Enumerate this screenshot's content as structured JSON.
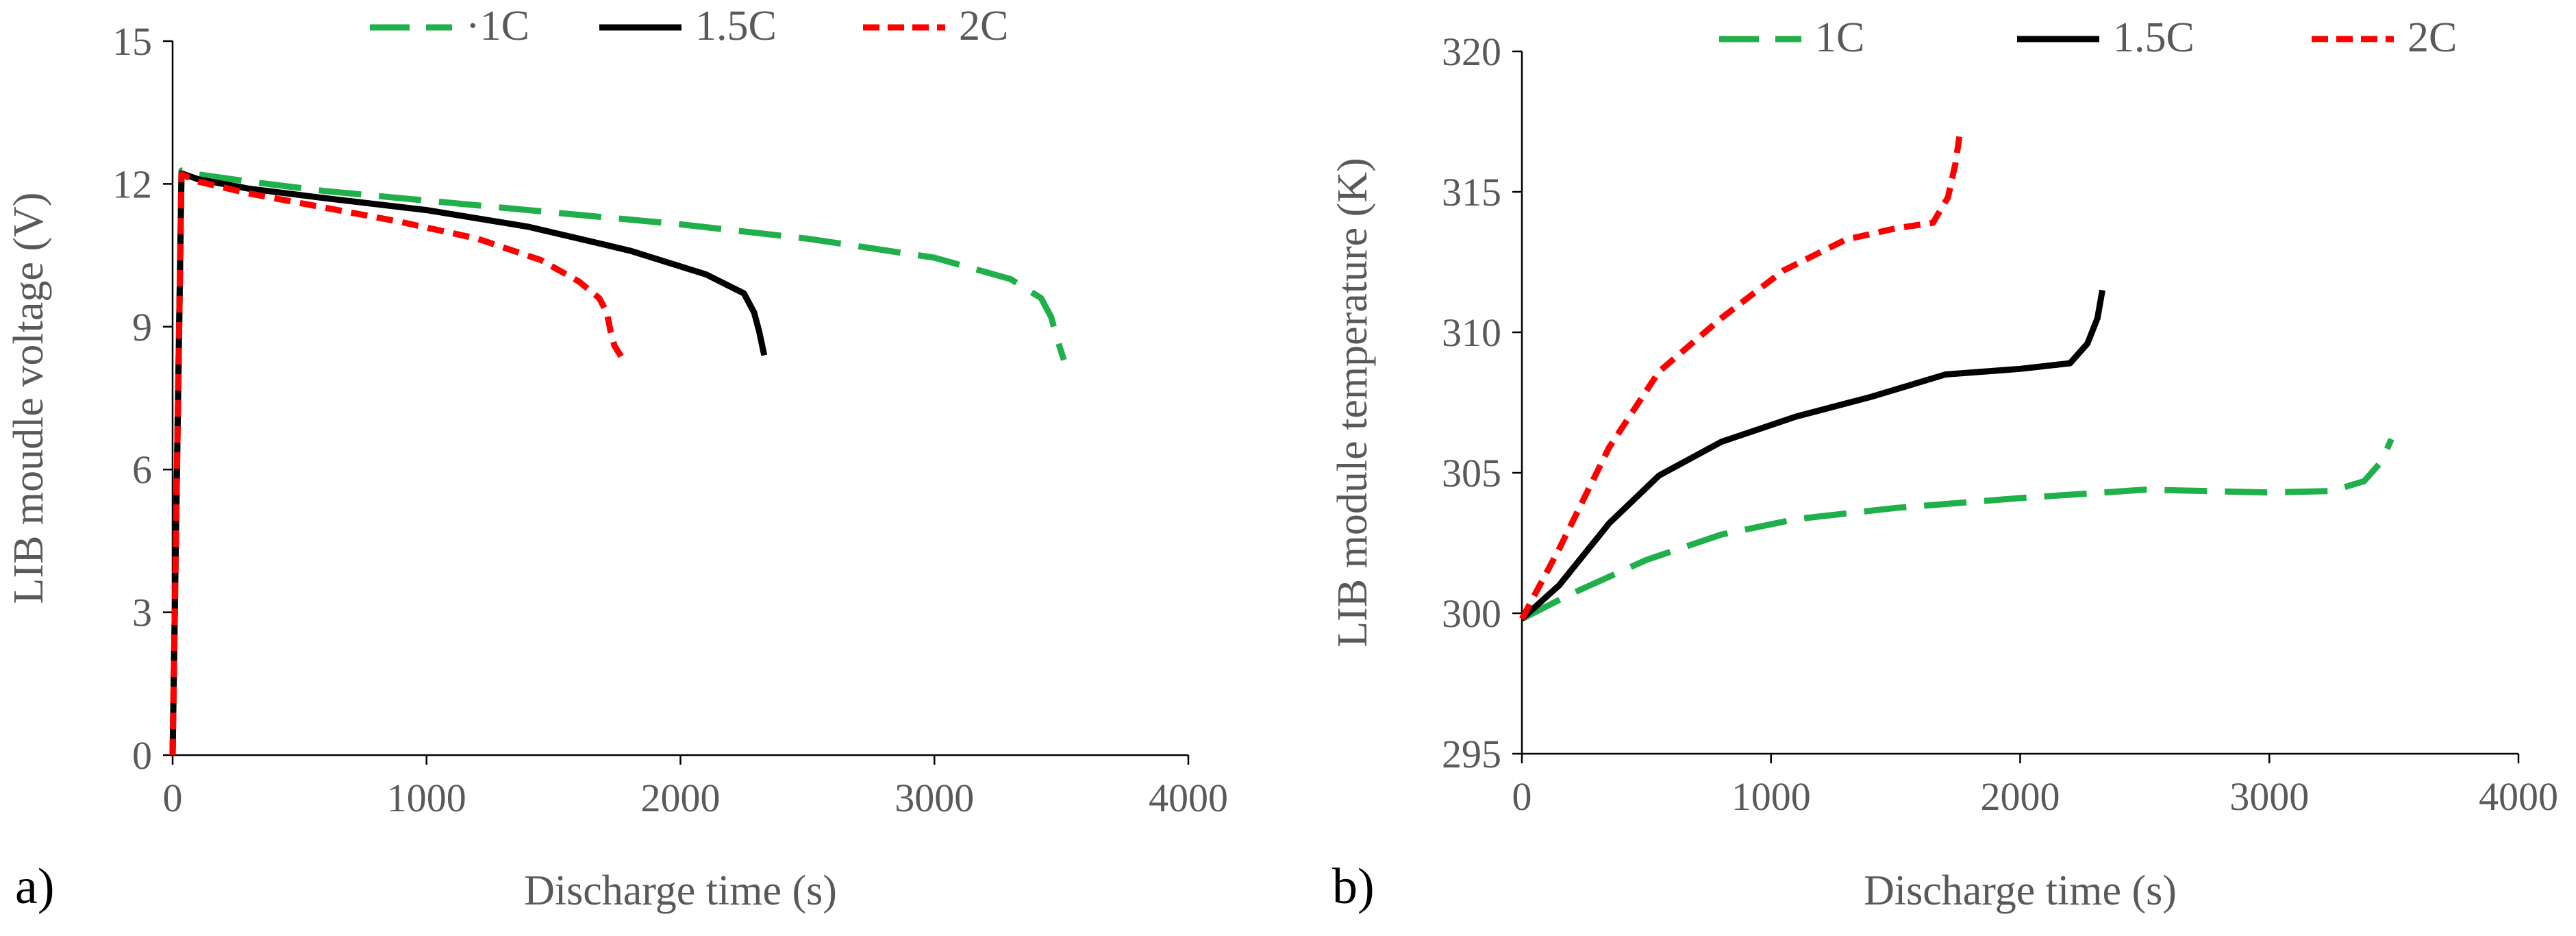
{
  "chart_data": [
    {
      "type": "line",
      "panel_label": "a)",
      "title": "",
      "xlabel": "Discharge time (s)",
      "ylabel": "LIB moudle voltage (V)",
      "xlim": [
        0,
        4000
      ],
      "ylim": [
        0,
        15
      ],
      "xticks": [
        0,
        1000,
        2000,
        3000,
        4000
      ],
      "yticks": [
        0,
        3,
        6,
        9,
        12,
        15
      ],
      "grid": false,
      "legend_position": "top",
      "series": [
        {
          "name": "1C",
          "legend_label": "·1C",
          "color": "#1fb04b",
          "style": "long-dash",
          "points": [
            [
              0,
              0
            ],
            [
              35,
              12.28
            ],
            [
              100,
              12.2
            ],
            [
              300,
              12.05
            ],
            [
              600,
              11.85
            ],
            [
              1000,
              11.65
            ],
            [
              1500,
              11.4
            ],
            [
              2000,
              11.15
            ],
            [
              2500,
              10.85
            ],
            [
              3000,
              10.45
            ],
            [
              3300,
              10.0
            ],
            [
              3420,
              9.6
            ],
            [
              3460,
              9.2
            ],
            [
              3480,
              8.8
            ],
            [
              3510,
              8.3
            ]
          ]
        },
        {
          "name": "1.5C",
          "legend_label": "1.5C",
          "color": "#000000",
          "style": "solid",
          "points": [
            [
              0,
              0
            ],
            [
              35,
              12.22
            ],
            [
              100,
              12.1
            ],
            [
              300,
              11.9
            ],
            [
              600,
              11.7
            ],
            [
              1000,
              11.45
            ],
            [
              1400,
              11.1
            ],
            [
              1800,
              10.6
            ],
            [
              2100,
              10.1
            ],
            [
              2250,
              9.7
            ],
            [
              2290,
              9.3
            ],
            [
              2310,
              8.9
            ],
            [
              2330,
              8.4
            ]
          ]
        },
        {
          "name": "2C",
          "legend_label": "2C",
          "color": "#ff0000",
          "style": "short-dash",
          "points": [
            [
              0,
              0
            ],
            [
              35,
              12.2
            ],
            [
              100,
              12.05
            ],
            [
              300,
              11.8
            ],
            [
              600,
              11.5
            ],
            [
              900,
              11.2
            ],
            [
              1200,
              10.85
            ],
            [
              1450,
              10.4
            ],
            [
              1600,
              9.95
            ],
            [
              1680,
              9.6
            ],
            [
              1710,
              9.3
            ],
            [
              1725,
              8.9
            ],
            [
              1740,
              8.6
            ],
            [
              1775,
              8.3
            ]
          ]
        }
      ]
    },
    {
      "type": "line",
      "panel_label": "b)",
      "title": "",
      "xlabel": "Discharge time (s)",
      "ylabel": "LIB module temperature (K)",
      "xlim": [
        0,
        4000
      ],
      "ylim": [
        295,
        320
      ],
      "xticks": [
        0,
        1000,
        2000,
        3000,
        4000
      ],
      "yticks": [
        295,
        300,
        305,
        310,
        315,
        320
      ],
      "grid": false,
      "legend_position": "top",
      "series": [
        {
          "name": "1C",
          "legend_label": "1C",
          "color": "#1fb04b",
          "style": "long-dash",
          "points": [
            [
              0,
              299.8
            ],
            [
              200,
              300.7
            ],
            [
              500,
              301.9
            ],
            [
              800,
              302.8
            ],
            [
              1100,
              303.35
            ],
            [
              1500,
              303.75
            ],
            [
              2000,
              304.1
            ],
            [
              2500,
              304.4
            ],
            [
              3000,
              304.3
            ],
            [
              3250,
              304.35
            ],
            [
              3380,
              304.7
            ],
            [
              3450,
              305.4
            ],
            [
              3490,
              306.2
            ]
          ]
        },
        {
          "name": "1.5C",
          "legend_label": "1.5C",
          "color": "#000000",
          "style": "solid",
          "points": [
            [
              0,
              299.8
            ],
            [
              150,
              301.0
            ],
            [
              350,
              303.2
            ],
            [
              550,
              304.9
            ],
            [
              800,
              306.1
            ],
            [
              1100,
              307.0
            ],
            [
              1400,
              307.7
            ],
            [
              1700,
              308.5
            ],
            [
              2000,
              308.7
            ],
            [
              2200,
              308.9
            ],
            [
              2270,
              309.6
            ],
            [
              2310,
              310.5
            ],
            [
              2330,
              311.5
            ]
          ]
        },
        {
          "name": "2C",
          "legend_label": "2C",
          "color": "#ff0000",
          "style": "short-dash",
          "points": [
            [
              0,
              299.8
            ],
            [
              150,
              302.3
            ],
            [
              350,
              305.9
            ],
            [
              550,
              308.6
            ],
            [
              800,
              310.5
            ],
            [
              1050,
              312.2
            ],
            [
              1300,
              313.3
            ],
            [
              1500,
              313.7
            ],
            [
              1650,
              313.9
            ],
            [
              1710,
              314.8
            ],
            [
              1740,
              316.0
            ],
            [
              1760,
              317.2
            ]
          ]
        }
      ]
    }
  ]
}
